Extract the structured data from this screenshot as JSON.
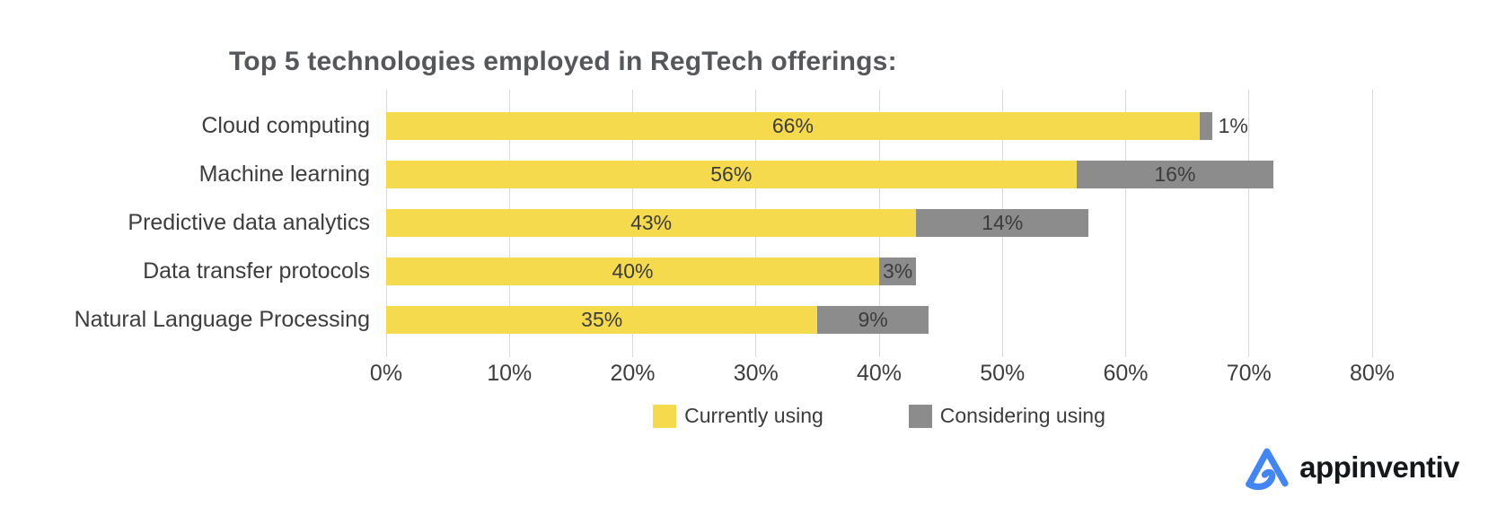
{
  "title": "Top 5 technologies employed in RegTech offerings:",
  "chart_data": {
    "type": "bar",
    "orientation": "horizontal",
    "stacked": true,
    "title": "Top 5 technologies employed in RegTech offerings:",
    "categories": [
      "Cloud computing",
      "Machine learning",
      "Predictive data analytics",
      "Data transfer protocols",
      "Natural Language Processing"
    ],
    "series": [
      {
        "name": "Currently using",
        "color": "#f5da4d",
        "values": [
          66,
          56,
          43,
          40,
          35
        ],
        "labels": [
          "66%",
          "56%",
          "43%",
          "40%",
          "35%"
        ]
      },
      {
        "name": "Considering using",
        "color": "#8c8c8c",
        "values": [
          1,
          16,
          14,
          3,
          9
        ],
        "labels": [
          "1%",
          "16%",
          "14%",
          "3%",
          "9%"
        ]
      }
    ],
    "xlim": [
      0,
      80
    ],
    "x_ticks": [
      "0%",
      "10%",
      "20%",
      "30%",
      "40%",
      "50%",
      "60%",
      "70%",
      "80%"
    ],
    "grid": "vertical",
    "legend_position": "bottom",
    "gridline_color": "#d9d9d9"
  },
  "legend": {
    "items": [
      {
        "label": "Currently using",
        "color": "#f5da4d"
      },
      {
        "label": "Considering using",
        "color": "#8c8c8c"
      }
    ]
  },
  "branding": {
    "logo_text": "appinventiv",
    "logo_color": "#4285f4"
  }
}
